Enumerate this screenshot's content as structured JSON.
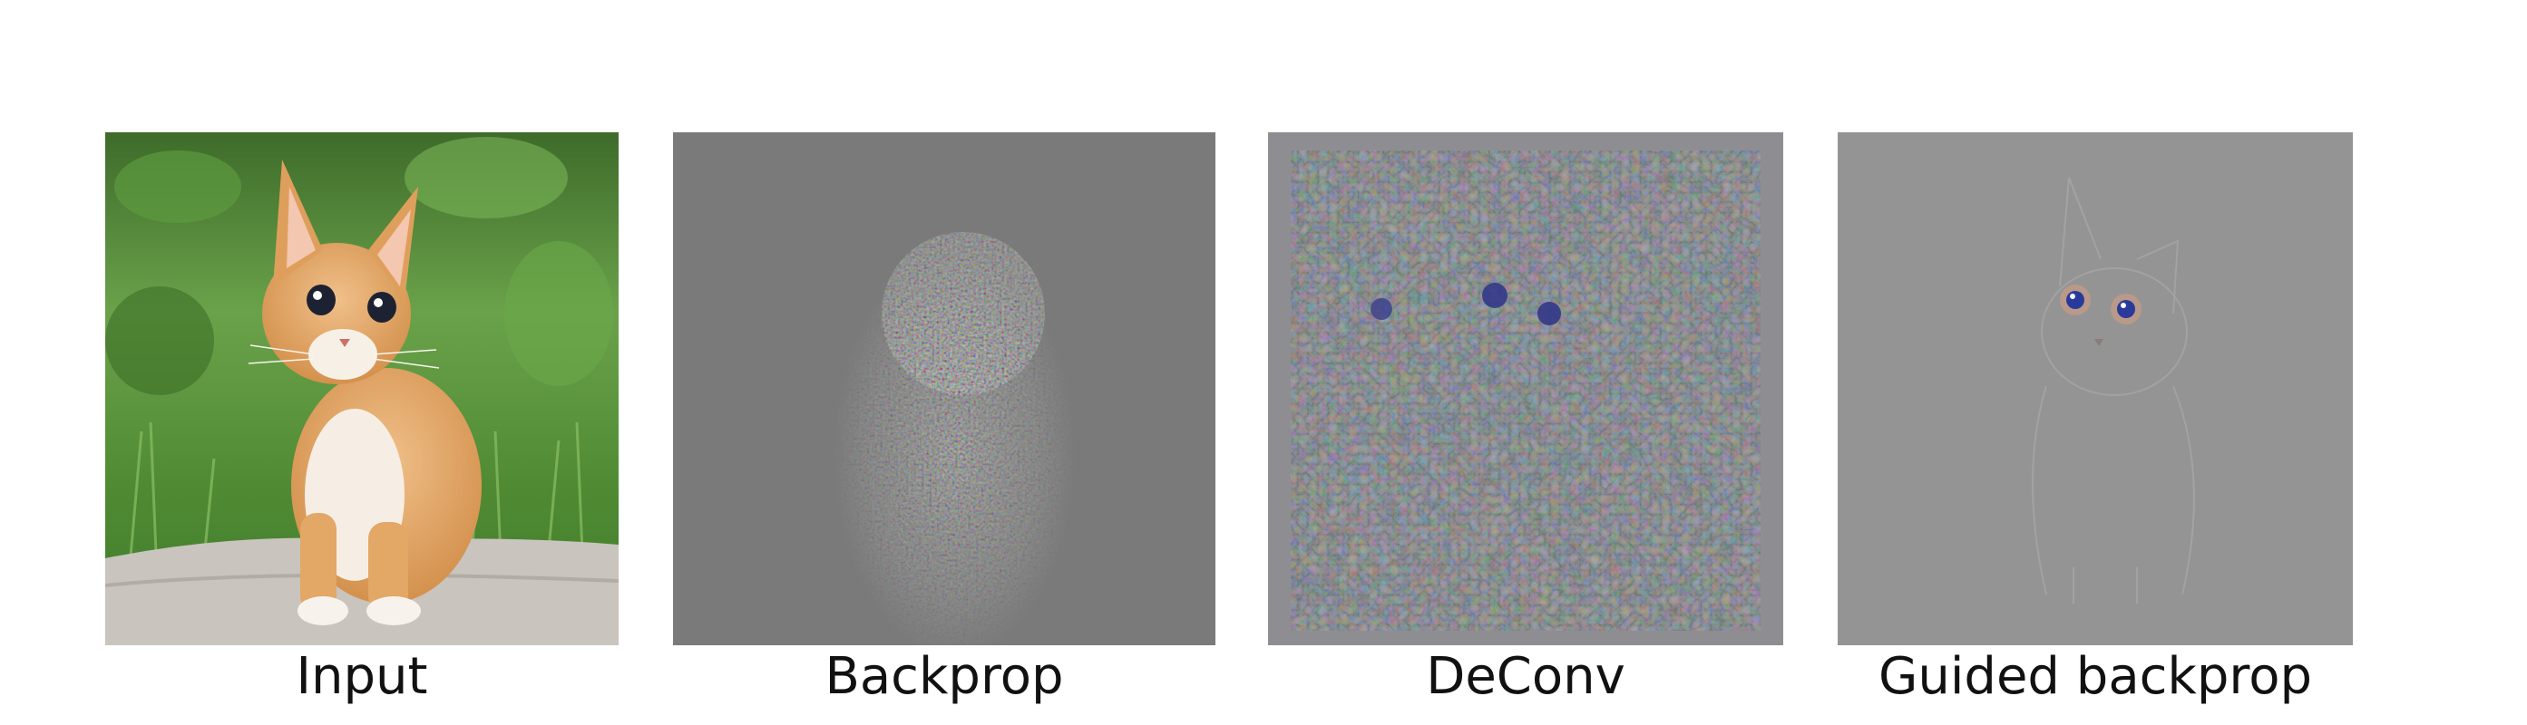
{
  "figure": {
    "panels": [
      {
        "caption": "Input"
      },
      {
        "caption": "Backprop"
      },
      {
        "caption": "DeConv"
      },
      {
        "caption": "Guided backprop"
      }
    ]
  },
  "colors": {
    "backprop_bg": "#7a7a7a",
    "deconv_bg": "#8e8e92",
    "guided_bg": "#949494",
    "grass": "#4f8a33",
    "cat_fur": "#e2a867",
    "rock": "#c9c4bd"
  }
}
